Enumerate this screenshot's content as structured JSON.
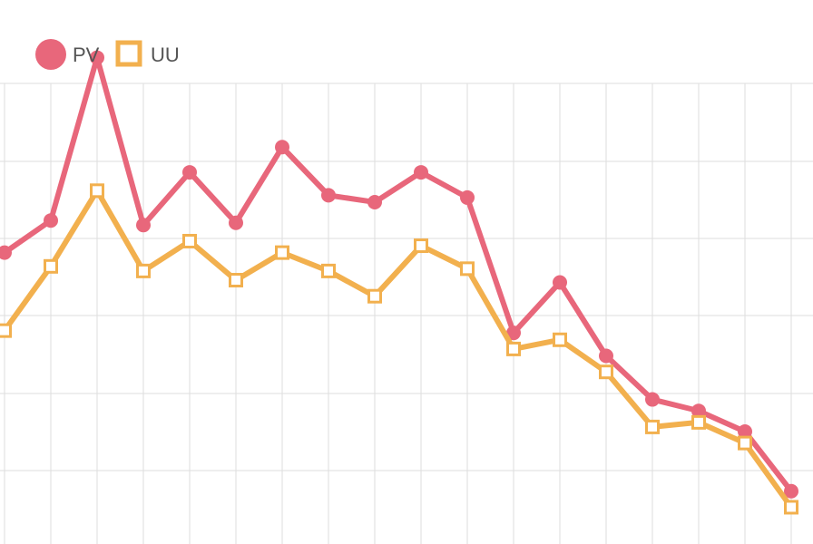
{
  "chart_data": {
    "type": "line",
    "legend_position": "top-left",
    "grid": true,
    "x_count": 18,
    "ylim": [
      0,
      100
    ],
    "series": [
      {
        "name": "PV",
        "color": "#e8677b",
        "marker": "circle",
        "values": [
          64.5,
          71.5,
          107.0,
          70.5,
          82.0,
          71.0,
          87.5,
          77.0,
          75.5,
          82.0,
          76.5,
          47.0,
          58.0,
          42.0,
          32.5,
          30.0,
          25.5,
          12.5
        ]
      },
      {
        "name": "UU",
        "color": "#f2b04e",
        "marker": "square",
        "values": [
          47.5,
          61.5,
          78.0,
          60.5,
          67.0,
          58.5,
          64.5,
          60.5,
          55.0,
          66.0,
          61.0,
          43.5,
          45.5,
          38.5,
          26.5,
          27.5,
          23.0,
          9.0
        ]
      }
    ]
  }
}
